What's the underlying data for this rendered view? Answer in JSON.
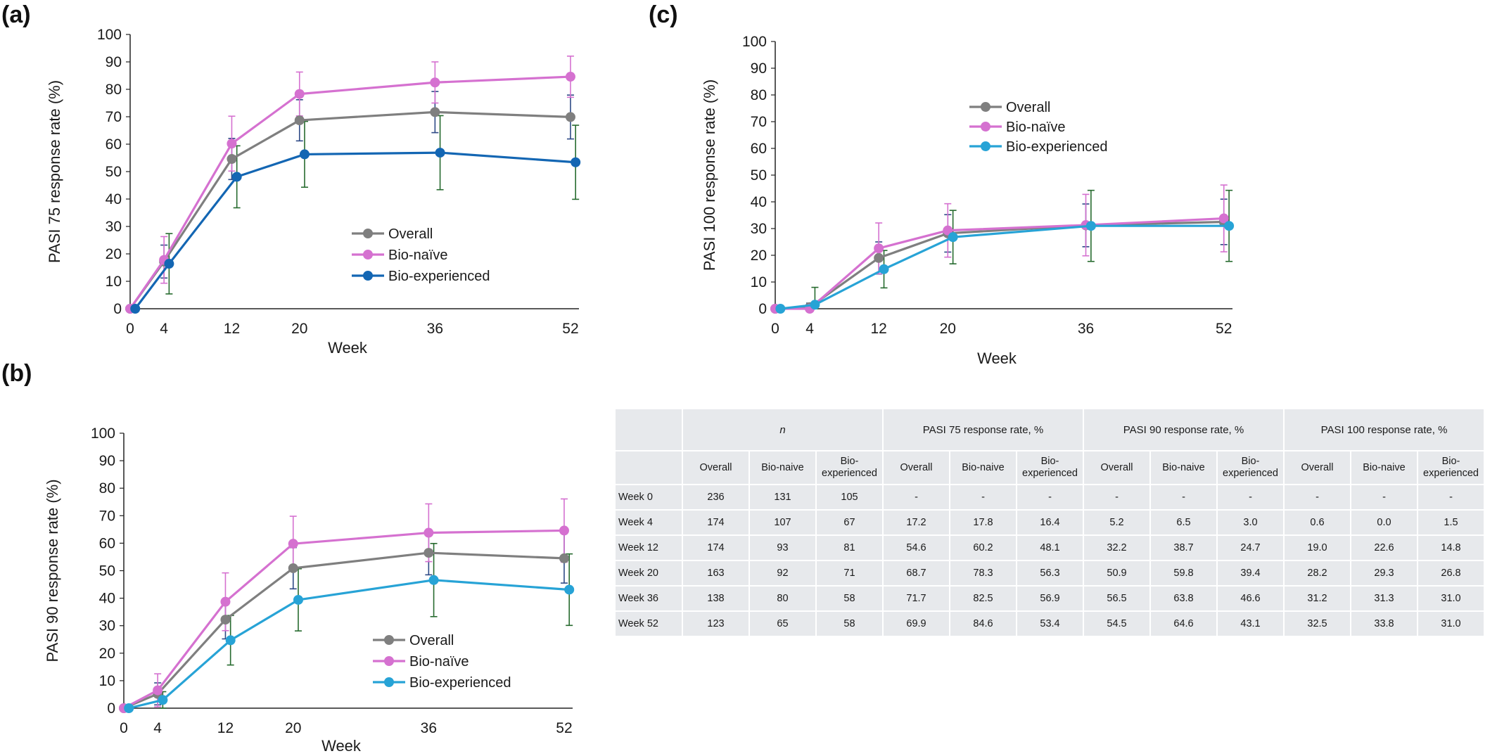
{
  "panels": {
    "a": "(a)",
    "b": "(b)",
    "c": "(c)"
  },
  "charts": [
    {
      "type": "line",
      "ylabel": "PASI 75 response rate (%)",
      "xlabel": "Week",
      "x": [
        0,
        4,
        12,
        20,
        36,
        52
      ],
      "xticks": [
        0,
        4,
        12,
        20,
        36,
        52
      ],
      "ylim": [
        0,
        100
      ],
      "yticks": [
        0,
        10,
        20,
        30,
        40,
        50,
        60,
        70,
        80,
        90,
        100
      ],
      "legend_position": "center-right",
      "series": [
        {
          "name": "Overall",
          "color": "#7f7f7f",
          "errcolor": "#2e4a86",
          "x_offset": 0,
          "values": [
            0,
            17.2,
            54.6,
            68.7,
            71.7,
            69.9
          ],
          "err": [
            0,
            6,
            7.5,
            7.5,
            7.5,
            8
          ]
        },
        {
          "name": "Bio-naïve",
          "color": "#d571d0",
          "errcolor": "#d571d0",
          "x_offset": 0,
          "values": [
            0,
            17.8,
            60.2,
            78.3,
            82.5,
            84.6
          ],
          "err": [
            0,
            8.5,
            10,
            8,
            7.5,
            7.5
          ]
        },
        {
          "name": "Bio-experienced",
          "color": "#1366b3",
          "errcolor": "#276b2f",
          "x_offset": 0.6,
          "values": [
            0,
            16.4,
            48.1,
            56.3,
            56.9,
            53.4
          ],
          "err": [
            0,
            11,
            11.3,
            12,
            13.5,
            13.5
          ]
        }
      ]
    },
    {
      "type": "line",
      "ylabel": "PASI 90 response rate (%)",
      "xlabel": "Week",
      "x": [
        0,
        4,
        12,
        20,
        36,
        52
      ],
      "xticks": [
        0,
        4,
        12,
        20,
        36,
        52
      ],
      "ylim": [
        0,
        100
      ],
      "yticks": [
        0,
        10,
        20,
        30,
        40,
        50,
        60,
        70,
        80,
        90,
        100
      ],
      "legend_position": "lower-right",
      "series": [
        {
          "name": "Overall",
          "color": "#7f7f7f",
          "errcolor": "#2e4a86",
          "x_offset": 0,
          "values": [
            0,
            5.2,
            32.2,
            50.9,
            56.5,
            54.5
          ],
          "err": [
            0,
            4,
            7,
            7.5,
            8,
            9
          ]
        },
        {
          "name": "Bio-naïve",
          "color": "#d571d0",
          "errcolor": "#d571d0",
          "x_offset": 0,
          "values": [
            0,
            6.5,
            38.7,
            59.8,
            63.8,
            64.6
          ],
          "err": [
            0,
            6,
            10.5,
            10,
            10.5,
            11.5
          ]
        },
        {
          "name": "Bio-experienced",
          "color": "#27a3d6",
          "errcolor": "#276b2f",
          "x_offset": 0.6,
          "values": [
            0,
            3.0,
            24.7,
            39.4,
            46.6,
            43.1
          ],
          "err": [
            0,
            3,
            9,
            11.3,
            13.3,
            13
          ]
        }
      ]
    },
    {
      "type": "line",
      "ylabel": "PASI 100 response rate (%)",
      "xlabel": "Week",
      "x": [
        0,
        4,
        12,
        20,
        36,
        52
      ],
      "xticks": [
        0,
        4,
        12,
        20,
        36,
        52
      ],
      "ylim": [
        0,
        100
      ],
      "yticks": [
        0,
        10,
        20,
        30,
        40,
        50,
        60,
        70,
        80,
        90,
        100
      ],
      "legend_position": "upper-left",
      "series": [
        {
          "name": "Overall",
          "color": "#7f7f7f",
          "errcolor": "#2e4a86",
          "x_offset": 0,
          "values": [
            0,
            0.6,
            19.0,
            28.2,
            31.2,
            32.5
          ],
          "err": [
            0,
            1.5,
            6,
            7,
            8,
            8.5
          ]
        },
        {
          "name": "Bio-naïve",
          "color": "#d571d0",
          "errcolor": "#d571d0",
          "x_offset": 0,
          "values": [
            0,
            0.0,
            22.6,
            29.3,
            31.3,
            33.8
          ],
          "err": [
            0,
            1.5,
            9.5,
            10,
            11.5,
            12.5
          ]
        },
        {
          "name": "Bio-experienced",
          "color": "#27a3d6",
          "errcolor": "#276b2f",
          "x_offset": 0.6,
          "values": [
            0,
            1.5,
            14.8,
            26.8,
            31.0,
            31.0
          ],
          "err": [
            0,
            6.5,
            7,
            10,
            13.3,
            13.3
          ]
        }
      ]
    }
  ],
  "table": {
    "group_headers": [
      "n",
      "PASI 75 response rate, %",
      "PASI 90 response rate, %",
      "PASI 100 response rate, %"
    ],
    "sub_headers": [
      "Overall",
      "Bio-naive",
      "Bio-\nexperienced",
      "Overall",
      "Bio-naive",
      "Bio-\nexperienced",
      "Overall",
      "Bio-naive",
      "Bio-\nexperienced",
      "Overall",
      "Bio-naive",
      "Bio-\nexperienced"
    ],
    "rows": [
      {
        "label": "Week 0",
        "cells": [
          "236",
          "131",
          "105",
          "-",
          "-",
          "-",
          "-",
          "-",
          "-",
          "-",
          "-",
          "-"
        ]
      },
      {
        "label": "Week 4",
        "cells": [
          "174",
          "107",
          "67",
          "17.2",
          "17.8",
          "16.4",
          "5.2",
          "6.5",
          "3.0",
          "0.6",
          "0.0",
          "1.5"
        ]
      },
      {
        "label": "Week 12",
        "cells": [
          "174",
          "93",
          "81",
          "54.6",
          "60.2",
          "48.1",
          "32.2",
          "38.7",
          "24.7",
          "19.0",
          "22.6",
          "14.8"
        ]
      },
      {
        "label": "Week 20",
        "cells": [
          "163",
          "92",
          "71",
          "68.7",
          "78.3",
          "56.3",
          "50.9",
          "59.8",
          "39.4",
          "28.2",
          "29.3",
          "26.8"
        ]
      },
      {
        "label": "Week 36",
        "cells": [
          "138",
          "80",
          "58",
          "71.7",
          "82.5",
          "56.9",
          "56.5",
          "63.8",
          "46.6",
          "31.2",
          "31.3",
          "31.0"
        ]
      },
      {
        "label": "Week 52",
        "cells": [
          "123",
          "65",
          "58",
          "69.9",
          "84.6",
          "53.4",
          "54.5",
          "64.6",
          "43.1",
          "32.5",
          "33.8",
          "31.0"
        ]
      }
    ]
  }
}
